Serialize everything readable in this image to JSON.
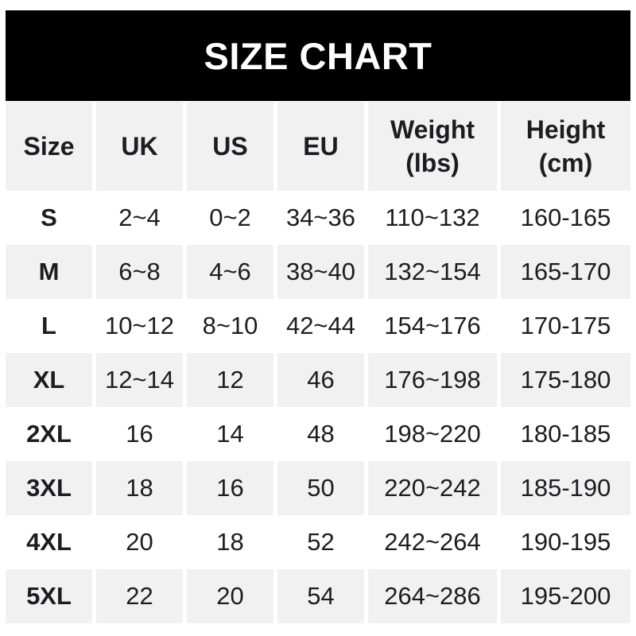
{
  "banner": {
    "title": "SIZE CHART"
  },
  "header": {
    "cells": [
      {
        "line1": "Size",
        "line2": ""
      },
      {
        "line1": "UK",
        "line2": ""
      },
      {
        "line1": "US",
        "line2": ""
      },
      {
        "line1": "EU",
        "line2": ""
      },
      {
        "line1": "Weight",
        "line2": "(lbs)"
      },
      {
        "line1": "Height",
        "line2": "(cm)"
      }
    ]
  },
  "chart_data": {
    "type": "table",
    "title": "SIZE CHART",
    "columns": [
      "Size",
      "UK",
      "US",
      "EU",
      "Weight (lbs)",
      "Height (cm)"
    ],
    "rows": [
      [
        "S",
        "2~4",
        "0~2",
        "34~36",
        "110~132",
        "160-165"
      ],
      [
        "M",
        "6~8",
        "4~6",
        "38~40",
        "132~154",
        "165-170"
      ],
      [
        "L",
        "10~12",
        "8~10",
        "42~44",
        "154~176",
        "170-175"
      ],
      [
        "XL",
        "12~14",
        "12",
        "46",
        "176~198",
        "175-180"
      ],
      [
        "2XL",
        "16",
        "14",
        "48",
        "198~220",
        "180-185"
      ],
      [
        "3XL",
        "18",
        "16",
        "50",
        "220~242",
        "185-190"
      ],
      [
        "4XL",
        "20",
        "18",
        "52",
        "242~264",
        "190-195"
      ],
      [
        "5XL",
        "22",
        "20",
        "54",
        "264~286",
        "195-200"
      ]
    ],
    "layout": {
      "row_striping": "header and even data rows gray, others white",
      "grid": "white vertical gaps between columns"
    }
  },
  "colors": {
    "banner_bg": "#000000",
    "banner_fg": "#ffffff",
    "row_alt_bg": "#f1f1f2",
    "text_color": "#1d1d1f"
  }
}
